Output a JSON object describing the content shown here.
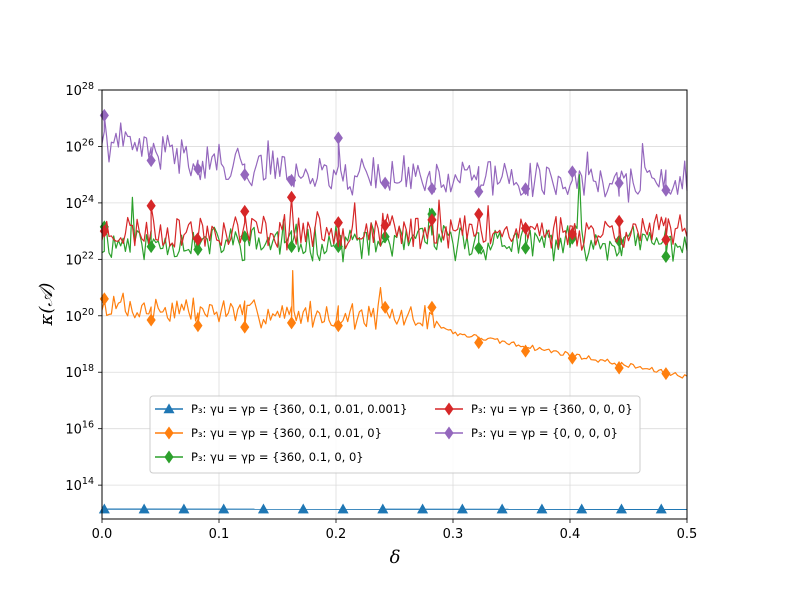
{
  "chart_data": {
    "type": "line",
    "title": "",
    "xlabel": "δ",
    "ylabel": "κ(𝒜)",
    "xlim": [
      0,
      0.5
    ],
    "ylim_log10": [
      12.8,
      28
    ],
    "yscale": "log",
    "grid": true,
    "legend_placement": "lower-center",
    "x_ticks": [
      "0.0",
      "0.1",
      "0.2",
      "0.3",
      "0.4",
      "0.5"
    ],
    "y_ticks": [
      {
        "base": "10",
        "exp": "14",
        "log": 14
      },
      {
        "base": "10",
        "exp": "16",
        "log": 16
      },
      {
        "base": "10",
        "exp": "18",
        "log": 18
      },
      {
        "base": "10",
        "exp": "20",
        "log": 20
      },
      {
        "base": "10",
        "exp": "22",
        "log": 22
      },
      {
        "base": "10",
        "exp": "24",
        "log": 24
      },
      {
        "base": "10",
        "exp": "26",
        "log": 26
      },
      {
        "base": "10",
        "exp": "28",
        "log": 28
      }
    ],
    "series": [
      {
        "name": "P₃: γu = γp = {360, 0.1, 0.01, 0.001}",
        "color": "#1f77b4",
        "marker": "triangle",
        "kind": "flat",
        "level_log10": 13.15,
        "marker_x": [
          0.002,
          0.036,
          0.07,
          0.104,
          0.138,
          0.172,
          0.206,
          0.24,
          0.274,
          0.308,
          0.342,
          0.376,
          0.41,
          0.444,
          0.478
        ]
      },
      {
        "name": "P₃: γu = γp = {360, 0.1, 0.01, 0}",
        "color": "#ff7f0e",
        "marker": "diamond",
        "kind": "noisy",
        "baseline": [
          [
            0,
            20.3
          ],
          [
            0.28,
            19.9
          ],
          [
            0.3,
            19.4
          ],
          [
            0.5,
            17.85
          ]
        ],
        "noise_until": 0.285,
        "noise_amp": 0.7,
        "spikes": [
          [
            0.163,
            21.6
          ],
          [
            0.238,
            21.0
          ],
          [
            0.018,
            20.8
          ]
        ],
        "markers": [
          [
            0.002,
            20.6
          ],
          [
            0.042,
            19.85
          ],
          [
            0.082,
            19.65
          ],
          [
            0.122,
            19.6
          ],
          [
            0.162,
            19.75
          ],
          [
            0.202,
            19.65
          ],
          [
            0.242,
            20.3
          ],
          [
            0.282,
            20.3
          ],
          [
            0.322,
            19.05
          ],
          [
            0.362,
            18.75
          ],
          [
            0.402,
            18.5
          ],
          [
            0.442,
            18.15
          ],
          [
            0.482,
            17.95
          ]
        ],
        "seed": 7
      },
      {
        "name": "P₃: γu = γp = {360, 0.1, 0, 0}",
        "color": "#2ca02c",
        "marker": "diamond",
        "kind": "noisy",
        "baseline": [
          [
            0,
            22.6
          ],
          [
            0.5,
            22.6
          ]
        ],
        "noise_until": 0.5,
        "noise_amp": 0.9,
        "spikes": [
          [
            0.026,
            24.2
          ],
          [
            0.408,
            25.0
          ],
          [
            0.28,
            23.8
          ],
          [
            0.155,
            23.4
          ]
        ],
        "markers": [
          [
            0.002,
            23.15
          ],
          [
            0.042,
            22.45
          ],
          [
            0.082,
            22.35
          ],
          [
            0.122,
            22.8
          ],
          [
            0.162,
            22.45
          ],
          [
            0.202,
            22.45
          ],
          [
            0.242,
            22.8
          ],
          [
            0.282,
            23.6
          ],
          [
            0.322,
            22.4
          ],
          [
            0.362,
            22.4
          ],
          [
            0.402,
            22.75
          ],
          [
            0.442,
            22.65
          ],
          [
            0.482,
            22.1
          ]
        ],
        "seed": 11
      },
      {
        "name": "P₃: γu = γp = {360, 0, 0, 0}",
        "color": "#d62728",
        "marker": "diamond",
        "kind": "noisy",
        "baseline": [
          [
            0,
            23.0
          ],
          [
            0.5,
            23.0
          ]
        ],
        "noise_until": 0.5,
        "noise_amp": 0.9,
        "spikes": [
          [
            0.162,
            24.2
          ],
          [
            0.216,
            24.0
          ],
          [
            0.288,
            24.1
          ],
          [
            0.33,
            23.9
          ]
        ],
        "markers": [
          [
            0.002,
            23.0
          ],
          [
            0.042,
            23.9
          ],
          [
            0.082,
            22.7
          ],
          [
            0.122,
            23.7
          ],
          [
            0.162,
            24.2
          ],
          [
            0.202,
            23.3
          ],
          [
            0.242,
            23.2
          ],
          [
            0.282,
            23.4
          ],
          [
            0.322,
            23.6
          ],
          [
            0.362,
            23.1
          ],
          [
            0.402,
            22.9
          ],
          [
            0.442,
            23.35
          ],
          [
            0.482,
            22.7
          ]
        ],
        "seed": 23
      },
      {
        "name": "P₃: γu = γp = {0, 0, 0, 0}",
        "color": "#9467bd",
        "marker": "diamond",
        "kind": "noisy",
        "baseline": [
          [
            0,
            26.2
          ],
          [
            0.1,
            25.4
          ],
          [
            0.2,
            25.0
          ],
          [
            0.5,
            24.7
          ]
        ],
        "noise_until": 0.5,
        "noise_amp": 1.0,
        "spikes": [
          [
            0.142,
            26.2
          ],
          [
            0.415,
            25.8
          ],
          [
            0.462,
            26.1
          ],
          [
            0.232,
            25.6
          ],
          [
            0.072,
            26.0
          ]
        ],
        "markers": [
          [
            0.002,
            27.1
          ],
          [
            0.042,
            25.5
          ],
          [
            0.082,
            25.2
          ],
          [
            0.122,
            25.0
          ],
          [
            0.162,
            24.8
          ],
          [
            0.202,
            26.3
          ],
          [
            0.242,
            24.7
          ],
          [
            0.282,
            24.5
          ],
          [
            0.322,
            24.4
          ],
          [
            0.362,
            24.5
          ],
          [
            0.402,
            25.1
          ],
          [
            0.442,
            24.7
          ],
          [
            0.482,
            24.45
          ]
        ],
        "seed": 41
      }
    ]
  }
}
